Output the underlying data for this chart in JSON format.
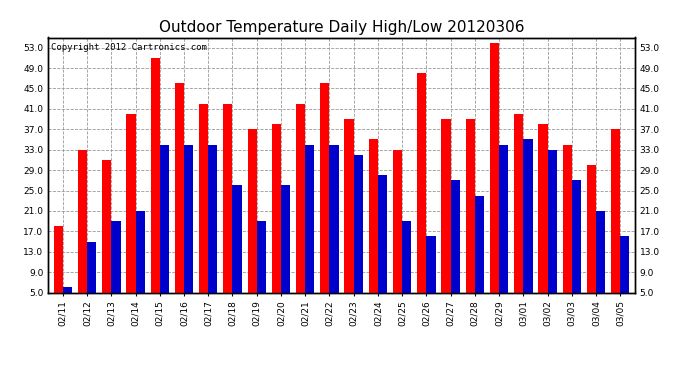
{
  "title": "Outdoor Temperature Daily High/Low 20120306",
  "copyright_text": "Copyright 2012 Cartronics.com",
  "dates": [
    "02/11",
    "02/12",
    "02/13",
    "02/14",
    "02/15",
    "02/16",
    "02/17",
    "02/18",
    "02/19",
    "02/20",
    "02/21",
    "02/22",
    "02/23",
    "02/24",
    "02/25",
    "02/26",
    "02/27",
    "02/28",
    "02/29",
    "03/01",
    "03/02",
    "03/03",
    "03/04",
    "03/05"
  ],
  "highs": [
    18.0,
    33.0,
    31.0,
    40.0,
    51.0,
    46.0,
    42.0,
    42.0,
    37.0,
    38.0,
    42.0,
    46.0,
    39.0,
    35.0,
    33.0,
    48.0,
    39.0,
    39.0,
    54.0,
    40.0,
    38.0,
    34.0,
    30.0,
    37.0
  ],
  "lows": [
    6.0,
    15.0,
    19.0,
    21.0,
    34.0,
    34.0,
    34.0,
    26.0,
    19.0,
    26.0,
    34.0,
    34.0,
    32.0,
    28.0,
    19.0,
    16.0,
    27.0,
    24.0,
    34.0,
    35.0,
    33.0,
    27.0,
    21.0,
    16.0
  ],
  "high_color": "#ff0000",
  "low_color": "#0000cc",
  "background_color": "#ffffff",
  "plot_bg_color": "#ffffff",
  "grid_color": "#999999",
  "yticks": [
    5.0,
    9.0,
    13.0,
    17.0,
    21.0,
    25.0,
    29.0,
    33.0,
    37.0,
    41.0,
    45.0,
    49.0,
    53.0
  ],
  "ylim": [
    5.0,
    55.0
  ],
  "bar_width": 0.38,
  "title_fontsize": 11,
  "tick_fontsize": 6.5,
  "copyright_fontsize": 6.5
}
